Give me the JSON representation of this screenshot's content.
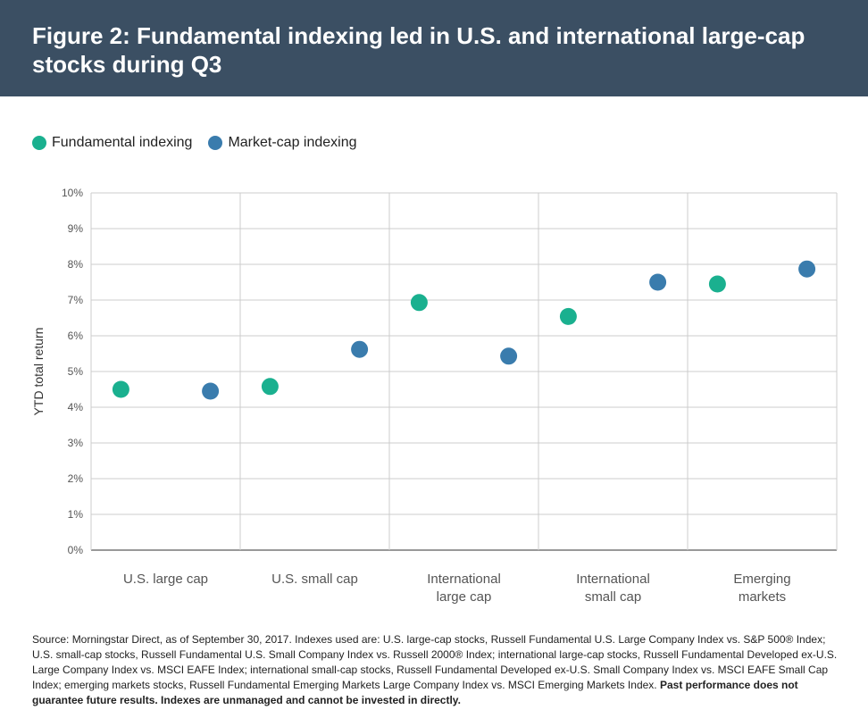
{
  "header": {
    "title": "Figure 2: Fundamental indexing led in U.S. and international large-cap stocks during Q3"
  },
  "colors": {
    "header_bg": "#3b4f63",
    "fundamental": "#1ab08f",
    "market_cap": "#3a7cad",
    "grid": "#cccccc",
    "axis": "#999999"
  },
  "chart_data": {
    "type": "scatter",
    "categories": [
      [
        "U.S. large cap"
      ],
      [
        "U.S. small cap"
      ],
      [
        "International",
        "large cap"
      ],
      [
        "International",
        "small cap"
      ],
      [
        "Emerging",
        "markets"
      ]
    ],
    "series": [
      {
        "name": "Fundamental indexing",
        "color": "#1ab08f",
        "values": [
          4.5,
          4.58,
          6.93,
          6.54,
          7.45
        ]
      },
      {
        "name": "Market-cap indexing",
        "color": "#3a7cad",
        "values": [
          4.45,
          5.62,
          5.43,
          7.5,
          7.87
        ]
      }
    ],
    "ylabel": "YTD total return",
    "ylim": [
      0,
      10
    ],
    "yticks": [
      0,
      1,
      2,
      3,
      4,
      5,
      6,
      7,
      8,
      9,
      10
    ],
    "ytick_labels": [
      "0%",
      "1%",
      "2%",
      "3%",
      "4%",
      "5%",
      "6%",
      "7%",
      "8%",
      "9%",
      "10%"
    ],
    "grid": true,
    "legend_position": "top-left"
  },
  "footnote": {
    "text": "Source: Morningstar Direct, as of September 30, 2017. Indexes used are: U.S. large-cap stocks, Russell Fundamental U.S. Large Company Index vs. S&P 500® Index; U.S. small-cap stocks, Russell Fundamental U.S. Small Company Index vs. Russell 2000® Index; international large-cap stocks, Russell Fundamental Developed ex-U.S. Large Company Index vs. MSCI EAFE Index; international small-cap stocks, Russell Fundamental Developed ex-U.S. Small Company Index vs. MSCI EAFE Small Cap Index; emerging markets stocks, Russell Fundamental Emerging Markets Large Company Index vs. MSCI Emerging Markets Index. ",
    "bold": "Past performance does not guarantee future results. Indexes are unmanaged and cannot be invested in directly."
  }
}
